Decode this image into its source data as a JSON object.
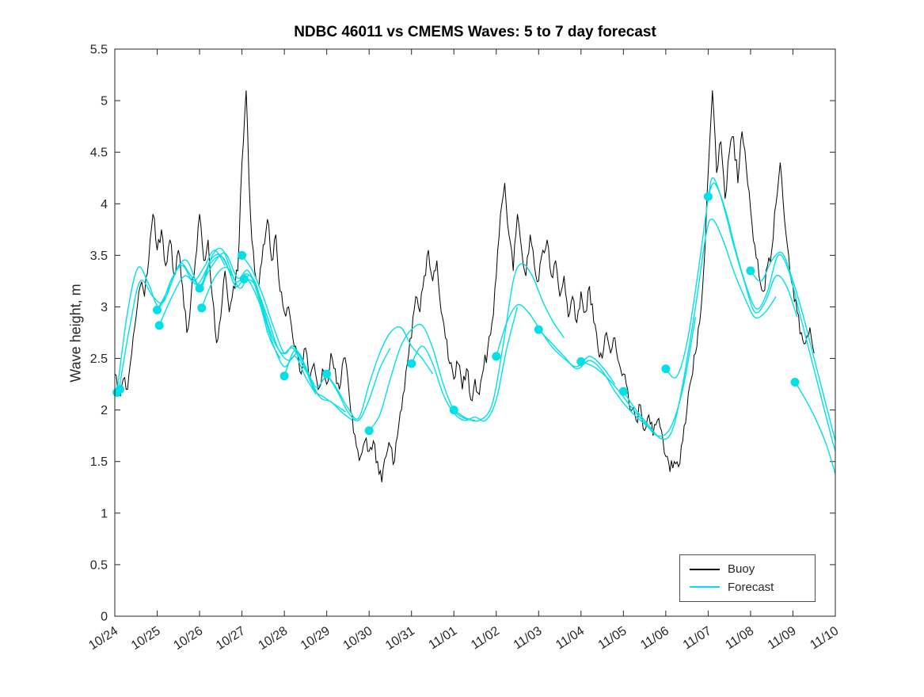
{
  "chart_data": {
    "type": "line",
    "title": "NDBC 46011 vs CMEMS Waves: 5 to 7 day forecast",
    "xlabel": "",
    "ylabel": "Wave height, m",
    "xlim": [
      0,
      17
    ],
    "ylim": [
      0,
      5.5
    ],
    "grid": false,
    "legend_position": "bottom-right-inside",
    "x_tick_labels": [
      "10/24",
      "10/25",
      "10/26",
      "10/27",
      "10/28",
      "10/29",
      "10/30",
      "10/31",
      "11/01",
      "11/02",
      "11/03",
      "11/04",
      "11/05",
      "11/06",
      "11/07",
      "11/08",
      "11/09",
      "11/10"
    ],
    "y_ticks": [
      0,
      0.5,
      1,
      1.5,
      2,
      2.5,
      3,
      3.5,
      4,
      4.5,
      5,
      5.5
    ],
    "y_tick_labels": [
      "0",
      "0.5",
      "1",
      "1.5",
      "2",
      "2.5",
      "3",
      "3.5",
      "4",
      "4.5",
      "5",
      "5.5"
    ],
    "colors": {
      "buoy": "#000000",
      "forecast": "#00e0e6"
    },
    "legend": [
      {
        "label": "Buoy",
        "color": "#000000"
      },
      {
        "label": "Forecast",
        "color": "#00e0e6"
      }
    ],
    "buoy": {
      "x_start": 0,
      "dx": 0.1,
      "noise_amplitude": 0.08,
      "values": [
        2.35,
        2.15,
        2.3,
        2.2,
        2.55,
        2.9,
        3.2,
        3.1,
        3.45,
        3.9,
        3.55,
        3.75,
        3.4,
        3.65,
        3.3,
        3.55,
        3.2,
        2.75,
        3.1,
        3.45,
        3.9,
        3.45,
        3.65,
        3.1,
        2.65,
        2.9,
        3.35,
        2.95,
        3.2,
        3.35,
        4.4,
        5.1,
        3.9,
        3.35,
        3.2,
        3.6,
        3.85,
        3.45,
        3.7,
        3.15,
        2.95,
        3.0,
        2.7,
        2.55,
        2.35,
        2.6,
        2.3,
        2.45,
        2.2,
        2.4,
        2.25,
        2.55,
        2.4,
        2.2,
        2.5,
        2.3,
        1.95,
        1.65,
        1.55,
        1.7,
        1.6,
        1.7,
        1.5,
        1.3,
        1.55,
        1.65,
        1.5,
        1.85,
        2.15,
        2.45,
        2.7,
        3.1,
        2.95,
        3.3,
        3.55,
        3.25,
        3.45,
        2.95,
        2.7,
        2.45,
        2.3,
        2.45,
        2.2,
        2.4,
        2.1,
        2.3,
        2.15,
        2.4,
        2.6,
        2.85,
        3.3,
        3.9,
        4.2,
        3.7,
        3.35,
        3.9,
        3.55,
        3.3,
        3.7,
        3.4,
        3.25,
        3.55,
        3.65,
        3.3,
        3.45,
        3.1,
        3.3,
        2.9,
        3.1,
        2.85,
        3.15,
        2.95,
        3.2,
        2.85,
        2.6,
        2.5,
        2.75,
        2.55,
        2.7,
        2.45,
        2.35,
        2.2,
        2.0,
        1.9,
        2.05,
        1.8,
        1.95,
        1.75,
        1.9,
        1.8,
        1.55,
        1.4,
        1.5,
        1.45,
        1.7,
        2.0,
        2.3,
        2.55,
        2.85,
        3.4,
        4.3,
        5.1,
        4.3,
        4.6,
        4.05,
        4.5,
        4.65,
        4.2,
        4.7,
        4.35,
        3.95,
        3.6,
        3.3,
        3.15,
        3.4,
        3.55,
        4.0,
        4.4,
        3.85,
        3.5,
        3.2,
        2.95,
        2.75,
        2.65,
        2.8,
        2.55
      ]
    },
    "forecast_segments": [
      [
        [
          0.05,
          2.17
        ],
        [
          0.3,
          2.95
        ],
        [
          0.55,
          3.38
        ],
        [
          0.8,
          3.22
        ],
        [
          1.05,
          3.0
        ],
        [
          1.35,
          3.28
        ],
        [
          1.6,
          3.4
        ],
        [
          1.85,
          3.25
        ],
        [
          2.1,
          3.38
        ],
        [
          2.35,
          3.55
        ],
        [
          2.6,
          3.4
        ]
      ],
      [
        [
          0.1,
          2.2
        ],
        [
          0.35,
          2.8
        ],
        [
          0.6,
          3.25
        ],
        [
          0.9,
          3.1
        ],
        [
          1.15,
          3.05
        ],
        [
          1.45,
          3.35
        ],
        [
          1.7,
          3.45
        ],
        [
          2.0,
          3.2
        ],
        [
          2.25,
          3.45
        ],
        [
          2.5,
          3.5
        ],
        [
          2.75,
          3.3
        ]
      ],
      [
        [
          1.0,
          2.97
        ],
        [
          1.3,
          3.2
        ],
        [
          1.55,
          3.42
        ],
        [
          1.8,
          3.3
        ],
        [
          2.05,
          3.2
        ],
        [
          2.3,
          3.5
        ],
        [
          2.55,
          3.55
        ],
        [
          2.85,
          3.25
        ],
        [
          3.1,
          3.32
        ],
        [
          3.35,
          3.2
        ],
        [
          3.6,
          2.75
        ]
      ],
      [
        [
          1.05,
          2.82
        ],
        [
          1.35,
          3.1
        ],
        [
          1.65,
          3.3
        ],
        [
          1.95,
          3.22
        ],
        [
          2.25,
          3.42
        ],
        [
          2.55,
          3.48
        ],
        [
          2.85,
          3.2
        ],
        [
          3.1,
          3.28
        ],
        [
          3.4,
          3.05
        ],
        [
          3.65,
          2.7
        ],
        [
          3.9,
          2.5
        ]
      ],
      [
        [
          2.0,
          3.18
        ],
        [
          2.3,
          3.4
        ],
        [
          2.6,
          3.52
        ],
        [
          2.9,
          3.28
        ],
        [
          3.15,
          3.35
        ],
        [
          3.45,
          3.05
        ],
        [
          3.7,
          2.72
        ],
        [
          3.95,
          2.55
        ],
        [
          4.2,
          2.6
        ],
        [
          4.45,
          2.42
        ],
        [
          4.7,
          2.25
        ]
      ],
      [
        [
          2.05,
          2.99
        ],
        [
          2.35,
          3.28
        ],
        [
          2.65,
          3.38
        ],
        [
          2.95,
          3.18
        ],
        [
          3.2,
          3.3
        ],
        [
          3.5,
          2.95
        ],
        [
          3.75,
          2.62
        ],
        [
          4.0,
          2.42
        ],
        [
          4.25,
          2.52
        ],
        [
          4.5,
          2.32
        ],
        [
          4.75,
          2.15
        ]
      ],
      [
        [
          3.0,
          3.5
        ],
        [
          3.25,
          3.35
        ],
        [
          3.5,
          3.1
        ],
        [
          3.75,
          2.8
        ],
        [
          4.0,
          2.55
        ],
        [
          4.2,
          2.62
        ],
        [
          4.45,
          2.45
        ],
        [
          4.7,
          2.2
        ],
        [
          4.95,
          2.12
        ],
        [
          5.2,
          2.05
        ],
        [
          5.45,
          1.98
        ]
      ],
      [
        [
          3.05,
          3.27
        ],
        [
          3.3,
          3.22
        ],
        [
          3.6,
          2.9
        ],
        [
          3.85,
          2.6
        ],
        [
          4.1,
          2.48
        ],
        [
          4.35,
          2.55
        ],
        [
          4.6,
          2.3
        ],
        [
          4.85,
          2.12
        ],
        [
          5.1,
          2.08
        ],
        [
          5.35,
          1.98
        ],
        [
          5.6,
          1.9
        ]
      ],
      [
        [
          4.0,
          2.33
        ],
        [
          4.25,
          2.58
        ],
        [
          4.5,
          2.42
        ],
        [
          4.75,
          2.22
        ],
        [
          5.0,
          2.32
        ],
        [
          5.25,
          2.18
        ],
        [
          5.5,
          1.98
        ],
        [
          5.75,
          1.9
        ],
        [
          6.0,
          2.1
        ],
        [
          6.25,
          2.4
        ],
        [
          6.5,
          2.6
        ]
      ],
      [
        [
          5.0,
          2.35
        ],
        [
          5.25,
          2.2
        ],
        [
          5.5,
          2.02
        ],
        [
          5.75,
          1.92
        ],
        [
          6.0,
          2.25
        ],
        [
          6.25,
          2.55
        ],
        [
          6.5,
          2.75
        ],
        [
          6.75,
          2.8
        ],
        [
          7.0,
          2.62
        ],
        [
          7.25,
          2.5
        ],
        [
          7.5,
          2.35
        ]
      ],
      [
        [
          6.0,
          1.8
        ],
        [
          6.25,
          1.95
        ],
        [
          6.5,
          2.3
        ],
        [
          6.75,
          2.62
        ],
        [
          7.0,
          2.78
        ],
        [
          7.25,
          2.82
        ],
        [
          7.5,
          2.6
        ],
        [
          7.75,
          2.25
        ],
        [
          8.0,
          2.0
        ],
        [
          8.25,
          1.92
        ],
        [
          8.5,
          1.9
        ]
      ],
      [
        [
          7.0,
          2.45
        ],
        [
          7.25,
          2.62
        ],
        [
          7.5,
          2.45
        ],
        [
          7.75,
          2.15
        ],
        [
          8.0,
          1.97
        ],
        [
          8.25,
          1.9
        ],
        [
          8.5,
          1.93
        ],
        [
          8.75,
          1.9
        ],
        [
          9.0,
          2.1
        ],
        [
          9.25,
          2.6
        ],
        [
          9.5,
          3.0
        ]
      ],
      [
        [
          8.0,
          2.0
        ],
        [
          8.3,
          1.92
        ],
        [
          8.6,
          1.9
        ],
        [
          8.9,
          2.05
        ],
        [
          9.15,
          2.6
        ],
        [
          9.4,
          3.25
        ],
        [
          9.6,
          3.42
        ],
        [
          9.85,
          3.3
        ],
        [
          10.1,
          3.05
        ],
        [
          10.35,
          2.85
        ],
        [
          10.6,
          2.7
        ]
      ],
      [
        [
          9.0,
          2.52
        ],
        [
          9.25,
          2.85
        ],
        [
          9.5,
          3.02
        ],
        [
          9.75,
          2.95
        ],
        [
          10.0,
          2.8
        ],
        [
          10.3,
          2.62
        ],
        [
          10.6,
          2.5
        ],
        [
          10.9,
          2.42
        ],
        [
          11.2,
          2.52
        ],
        [
          11.5,
          2.42
        ],
        [
          11.8,
          2.25
        ]
      ],
      [
        [
          10.0,
          2.78
        ],
        [
          10.3,
          2.65
        ],
        [
          10.6,
          2.52
        ],
        [
          10.9,
          2.4
        ],
        [
          11.2,
          2.48
        ],
        [
          11.5,
          2.38
        ],
        [
          11.8,
          2.18
        ],
        [
          12.1,
          2.02
        ],
        [
          12.4,
          1.9
        ],
        [
          12.7,
          1.8
        ]
      ],
      [
        [
          11.0,
          2.47
        ],
        [
          11.3,
          2.42
        ],
        [
          11.6,
          2.32
        ],
        [
          11.9,
          2.18
        ],
        [
          12.2,
          2.02
        ],
        [
          12.5,
          1.88
        ],
        [
          12.8,
          1.75
        ],
        [
          13.1,
          1.82
        ],
        [
          13.4,
          2.2
        ],
        [
          13.7,
          2.9
        ]
      ],
      [
        [
          12.0,
          2.18
        ],
        [
          12.3,
          2.0
        ],
        [
          12.6,
          1.85
        ],
        [
          12.9,
          1.72
        ],
        [
          13.15,
          1.8
        ],
        [
          13.4,
          2.25
        ],
        [
          13.7,
          3.0
        ],
        [
          13.95,
          3.7
        ],
        [
          14.1,
          3.85
        ],
        [
          14.35,
          3.65
        ],
        [
          14.6,
          3.35
        ],
        [
          14.85,
          3.1
        ],
        [
          15.1,
          2.9
        ],
        [
          15.35,
          2.95
        ],
        [
          15.6,
          3.1
        ]
      ],
      [
        [
          13.0,
          2.4
        ],
        [
          13.25,
          2.32
        ],
        [
          13.5,
          2.65
        ],
        [
          13.75,
          3.3
        ],
        [
          14.0,
          4.05
        ],
        [
          14.12,
          4.25
        ],
        [
          14.35,
          4.0
        ],
        [
          14.6,
          3.6
        ],
        [
          14.85,
          3.25
        ],
        [
          15.1,
          2.95
        ],
        [
          15.35,
          3.05
        ],
        [
          15.6,
          3.3
        ],
        [
          15.85,
          3.2
        ],
        [
          16.1,
          2.9
        ]
      ],
      [
        [
          14.0,
          4.07
        ],
        [
          14.15,
          4.2
        ],
        [
          14.4,
          3.95
        ],
        [
          14.65,
          3.55
        ],
        [
          14.9,
          3.2
        ],
        [
          15.15,
          2.98
        ],
        [
          15.4,
          3.15
        ],
        [
          15.65,
          3.5
        ],
        [
          15.9,
          3.35
        ],
        [
          16.15,
          2.95
        ],
        [
          16.4,
          2.55
        ],
        [
          16.65,
          2.15
        ],
        [
          16.9,
          1.75
        ],
        [
          17.0,
          1.6
        ]
      ],
      [
        [
          15.0,
          3.35
        ],
        [
          15.25,
          3.25
        ],
        [
          15.5,
          3.45
        ],
        [
          15.75,
          3.52
        ],
        [
          16.0,
          3.25
        ],
        [
          16.25,
          2.9
        ],
        [
          16.5,
          2.5
        ],
        [
          16.75,
          2.1
        ],
        [
          17.0,
          1.7
        ]
      ],
      [
        [
          16.05,
          2.27
        ],
        [
          16.3,
          2.1
        ],
        [
          16.55,
          1.9
        ],
        [
          16.8,
          1.65
        ],
        [
          17.0,
          1.38
        ]
      ]
    ],
    "forecast_markers": [
      [
        0.05,
        2.17
      ],
      [
        0.12,
        2.2
      ],
      [
        1.0,
        2.97
      ],
      [
        1.05,
        2.82
      ],
      [
        2.0,
        3.18
      ],
      [
        2.05,
        2.99
      ],
      [
        3.0,
        3.5
      ],
      [
        3.05,
        3.27
      ],
      [
        4.0,
        2.33
      ],
      [
        5.0,
        2.35
      ],
      [
        6.0,
        1.8
      ],
      [
        7.0,
        2.45
      ],
      [
        8.0,
        2.0
      ],
      [
        9.0,
        2.52
      ],
      [
        10.0,
        2.78
      ],
      [
        11.0,
        2.47
      ],
      [
        12.0,
        2.18
      ],
      [
        13.0,
        2.4
      ],
      [
        14.0,
        4.07
      ],
      [
        15.0,
        3.35
      ],
      [
        16.05,
        2.27
      ]
    ]
  }
}
